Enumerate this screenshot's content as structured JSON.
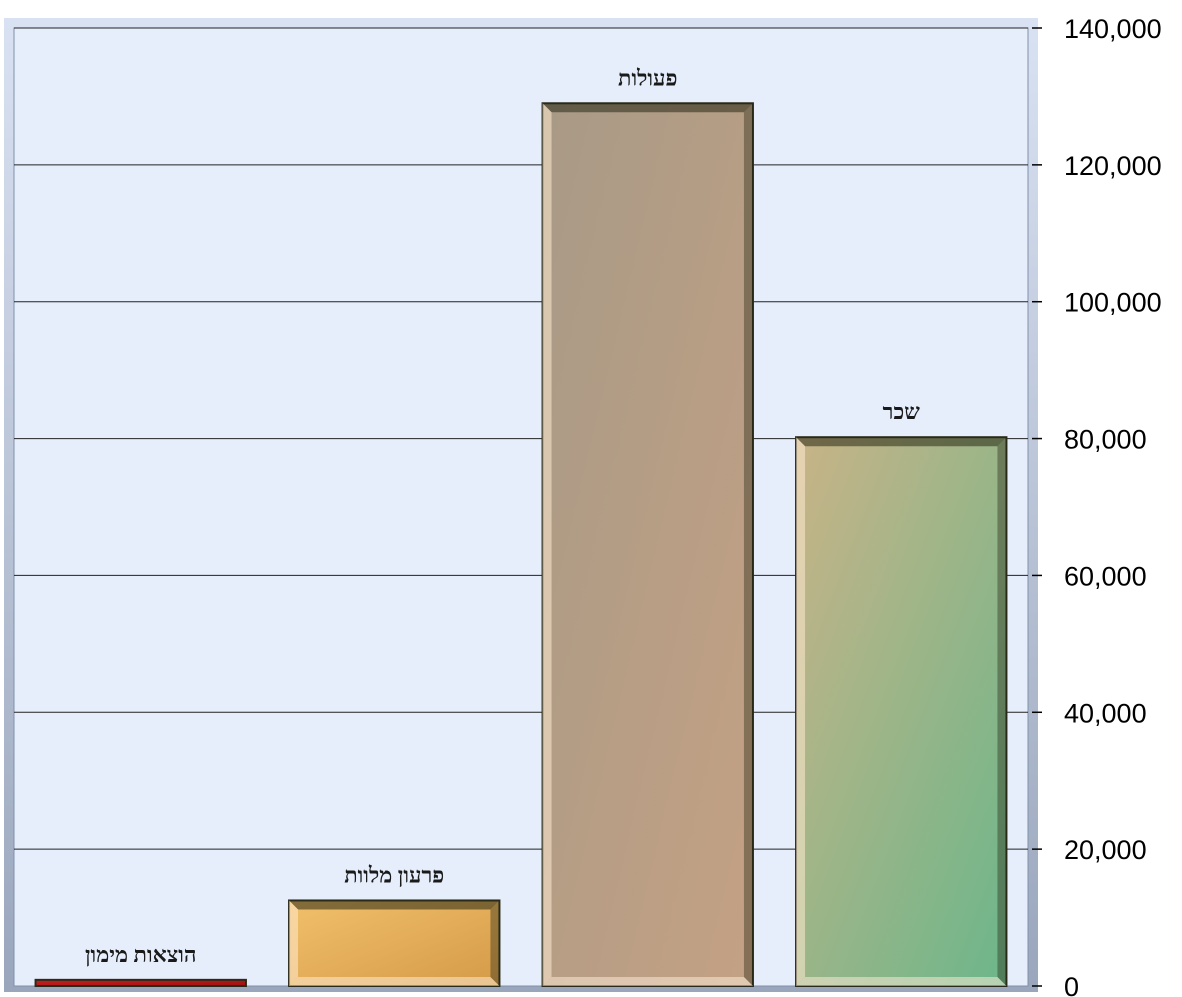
{
  "chart_data": {
    "type": "bar",
    "categories": [
      "הוצאות מימון",
      "פרעון מלוות",
      "פעולות",
      "שכר"
    ],
    "values": [
      900,
      12500,
      129000,
      80200
    ],
    "ylim": [
      0,
      140000
    ],
    "y_ticks": [
      0,
      20000,
      40000,
      60000,
      80000,
      100000,
      120000,
      140000
    ],
    "y_tick_labels": [
      "0",
      "20,000",
      "40,000",
      "60,000",
      "80,000",
      "100,000",
      "120,000",
      "140,000"
    ],
    "y_axis_side": "right",
    "grid": true,
    "legend": "none",
    "title": "",
    "xlabel": "",
    "ylabel": "",
    "colors": {
      "plot_background": "#e6eefc",
      "bars": [
        [
          "#c62020",
          "#a01010"
        ],
        [
          "#f2c06a",
          "#d49a48"
        ],
        [
          "#a89a86",
          "#c4a184"
        ],
        [
          "#c8b487",
          "#6cb68a"
        ]
      ]
    }
  }
}
